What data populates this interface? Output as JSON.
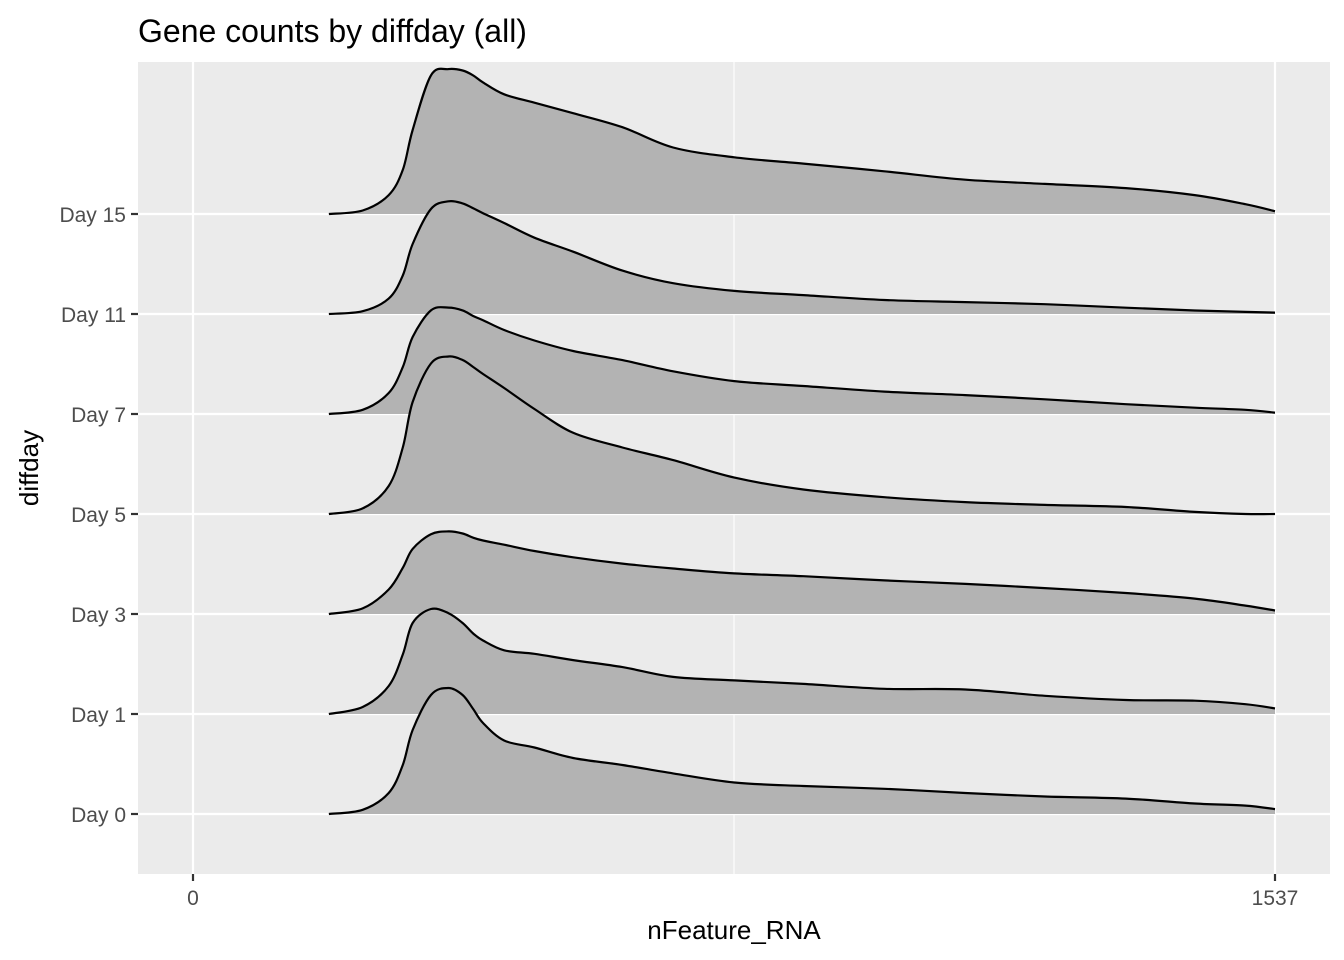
{
  "chart_data": {
    "type": "area",
    "subtype": "ridgeline",
    "title": "Gene counts by diffday (all)",
    "xlabel": "nFeature_RNA",
    "ylabel": "diffday",
    "xlim": [
      -100,
      1637
    ],
    "x_ticks": [
      0,
      1537
    ],
    "categories": [
      "Day 0",
      "Day 1",
      "Day 3",
      "Day 5",
      "Day 7",
      "Day 11",
      "Day 15"
    ],
    "grid": true,
    "legend": "none",
    "colors": {
      "panel": "#ebebeb",
      "fill": "#b3b3b3",
      "line": "#000000",
      "grid": "#ffffff"
    },
    "series": [
      {
        "category": "Day 0",
        "x": [
          193,
          241,
          278,
          298,
          312,
          338,
          363,
          383,
          398,
          412,
          442,
          485,
          540,
          610,
          682,
          769,
          867,
          982,
          1097,
          1210,
          1325,
          1423,
          1495,
          1537
        ],
        "density": [
          0.0,
          0.06,
          0.3,
          0.7,
          1.2,
          1.7,
          1.8,
          1.7,
          1.5,
          1.3,
          1.05,
          0.95,
          0.8,
          0.7,
          0.58,
          0.45,
          0.4,
          0.36,
          0.3,
          0.25,
          0.22,
          0.15,
          0.12,
          0.07
        ]
      },
      {
        "category": "Day 1",
        "x": [
          193,
          241,
          278,
          298,
          312,
          338,
          363,
          383,
          398,
          412,
          442,
          485,
          540,
          610,
          682,
          769,
          867,
          982,
          1097,
          1210,
          1325,
          1423,
          1495,
          1537
        ],
        "density": [
          0.0,
          0.1,
          0.4,
          0.85,
          1.3,
          1.5,
          1.44,
          1.3,
          1.15,
          1.05,
          0.91,
          0.86,
          0.77,
          0.67,
          0.53,
          0.48,
          0.43,
          0.36,
          0.35,
          0.26,
          0.2,
          0.19,
          0.14,
          0.08
        ]
      },
      {
        "category": "Day 3",
        "x": [
          193,
          241,
          278,
          298,
          312,
          338,
          363,
          383,
          398,
          412,
          442,
          485,
          540,
          610,
          682,
          769,
          867,
          982,
          1097,
          1210,
          1325,
          1423,
          1495,
          1537
        ],
        "density": [
          0.0,
          0.08,
          0.35,
          0.66,
          0.93,
          1.14,
          1.18,
          1.15,
          1.09,
          1.05,
          0.99,
          0.9,
          0.81,
          0.72,
          0.65,
          0.58,
          0.54,
          0.48,
          0.43,
          0.37,
          0.3,
          0.22,
          0.12,
          0.05
        ]
      },
      {
        "category": "Day 5",
        "x": [
          193,
          241,
          278,
          298,
          312,
          338,
          363,
          383,
          398,
          412,
          442,
          485,
          540,
          610,
          682,
          769,
          867,
          982,
          1097,
          1210,
          1325,
          1423,
          1495,
          1537
        ],
        "density": [
          0.0,
          0.08,
          0.4,
          0.95,
          1.6,
          2.15,
          2.25,
          2.2,
          2.1,
          2.0,
          1.8,
          1.5,
          1.16,
          0.95,
          0.77,
          0.52,
          0.35,
          0.24,
          0.17,
          0.13,
          0.1,
          0.03,
          0.0,
          0.0
        ]
      },
      {
        "category": "Day 7",
        "x": [
          193,
          241,
          278,
          298,
          312,
          338,
          363,
          383,
          398,
          412,
          442,
          485,
          540,
          610,
          682,
          769,
          867,
          982,
          1097,
          1210,
          1325,
          1423,
          1495,
          1537
        ],
        "density": [
          0.0,
          0.06,
          0.3,
          0.67,
          1.1,
          1.48,
          1.52,
          1.48,
          1.4,
          1.34,
          1.2,
          1.05,
          0.9,
          0.77,
          0.61,
          0.47,
          0.4,
          0.32,
          0.27,
          0.21,
          0.14,
          0.09,
          0.06,
          0.02
        ]
      },
      {
        "category": "Day 11",
        "x": [
          193,
          241,
          278,
          298,
          312,
          338,
          363,
          383,
          398,
          412,
          442,
          485,
          540,
          610,
          682,
          769,
          867,
          982,
          1097,
          1210,
          1325,
          1423,
          1495,
          1537
        ],
        "density": [
          0.0,
          0.04,
          0.22,
          0.55,
          1.0,
          1.5,
          1.61,
          1.58,
          1.51,
          1.44,
          1.3,
          1.09,
          0.89,
          0.62,
          0.44,
          0.33,
          0.27,
          0.2,
          0.17,
          0.14,
          0.09,
          0.05,
          0.03,
          0.02
        ]
      },
      {
        "category": "Day 15",
        "x": [
          193,
          241,
          278,
          298,
          312,
          338,
          363,
          383,
          398,
          412,
          442,
          485,
          540,
          610,
          682,
          769,
          867,
          982,
          1097,
          1210,
          1325,
          1423,
          1495,
          1537
        ],
        "density": [
          0.0,
          0.05,
          0.27,
          0.63,
          1.2,
          1.98,
          2.07,
          2.05,
          1.98,
          1.88,
          1.71,
          1.59,
          1.44,
          1.24,
          0.95,
          0.81,
          0.72,
          0.61,
          0.49,
          0.43,
          0.37,
          0.27,
          0.14,
          0.04
        ]
      }
    ]
  }
}
